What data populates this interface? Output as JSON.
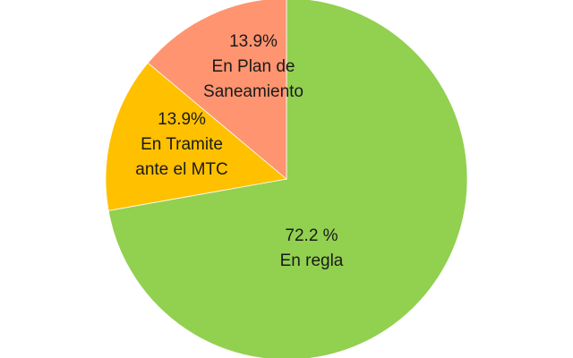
{
  "chart_data": {
    "type": "pie",
    "title": "",
    "start_angle_deg": 0,
    "direction": "clockwise",
    "slices": [
      {
        "name": "En regla",
        "value": 72.2,
        "value_label": "72.2 %",
        "label_lines": [
          "72.2 %",
          "En regla"
        ],
        "color": "#92d050"
      },
      {
        "name": "En Tramite ante el MTC",
        "value": 13.9,
        "value_label": "13.9%",
        "label_lines": [
          "13.9%",
          "En Tramite",
          "ante el MTC"
        ],
        "color": "#ffc000"
      },
      {
        "name": "En Plan de Saneamiento",
        "value": 13.9,
        "value_label": "13.9%",
        "label_lines": [
          "13.9%",
          "En Plan de",
          "Saneamiento"
        ],
        "color": "#ff9470"
      }
    ]
  }
}
